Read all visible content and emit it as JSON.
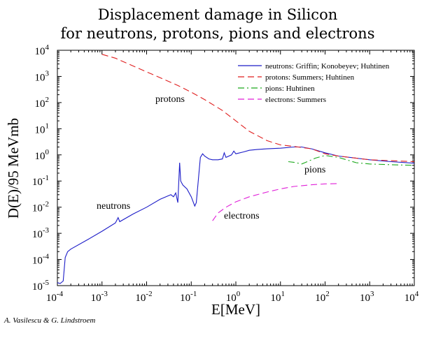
{
  "chart_data": {
    "type": "line",
    "title": [
      "Displacement damage in Silicon",
      "for neutrons, protons, pions and electrons"
    ],
    "xlabel": "E[MeV]",
    "ylabel": "D(E)/95 MeVmb",
    "xscale": "log",
    "yscale": "log",
    "xlim": [
      0.0001,
      10000
    ],
    "ylim": [
      1e-05,
      10000
    ],
    "x_ticks": [
      {
        "base": "10",
        "exp": "-4"
      },
      {
        "base": "10",
        "exp": "-3"
      },
      {
        "base": "10",
        "exp": "-2"
      },
      {
        "base": "10",
        "exp": "-1"
      },
      {
        "base": "10",
        "exp": "0"
      },
      {
        "base": "10",
        "exp": "1"
      },
      {
        "base": "10",
        "exp": "2"
      },
      {
        "base": "10",
        "exp": "3"
      },
      {
        "base": "10",
        "exp": "4"
      }
    ],
    "y_ticks": [
      {
        "base": "10",
        "exp": "-5"
      },
      {
        "base": "10",
        "exp": "-4"
      },
      {
        "base": "10",
        "exp": "-3"
      },
      {
        "base": "10",
        "exp": "-2"
      },
      {
        "base": "10",
        "exp": "-1"
      },
      {
        "base": "10",
        "exp": "0"
      },
      {
        "base": "10",
        "exp": "1"
      },
      {
        "base": "10",
        "exp": "2"
      },
      {
        "base": "10",
        "exp": "3"
      },
      {
        "base": "10",
        "exp": "4"
      }
    ],
    "legend_position": "top-right",
    "series": [
      {
        "name": "neutrons: Griffin; Konobeyev; Huhtinen",
        "label": "neutrons",
        "color": "#1c1cc8",
        "dash": "solid",
        "points": [
          [
            0.0001,
            1.3e-05
          ],
          [
            0.000115,
            1.2e-05
          ],
          [
            0.000135,
            1.5e-05
          ],
          [
            0.00015,
            0.00012
          ],
          [
            0.00017,
            0.0002
          ],
          [
            0.0002,
            0.00025
          ],
          [
            0.0005,
            0.0006
          ],
          [
            0.001,
            0.0012
          ],
          [
            0.002,
            0.0025
          ],
          [
            0.0023,
            0.004
          ],
          [
            0.0025,
            0.0028
          ],
          [
            0.005,
            0.0055
          ],
          [
            0.01,
            0.01
          ],
          [
            0.02,
            0.02
          ],
          [
            0.035,
            0.03
          ],
          [
            0.04,
            0.025
          ],
          [
            0.045,
            0.035
          ],
          [
            0.05,
            0.015
          ],
          [
            0.055,
            0.5
          ],
          [
            0.058,
            0.1
          ],
          [
            0.065,
            0.07
          ],
          [
            0.08,
            0.05
          ],
          [
            0.1,
            0.025
          ],
          [
            0.12,
            0.011
          ],
          [
            0.13,
            0.015
          ],
          [
            0.16,
            0.8
          ],
          [
            0.18,
            1.1
          ],
          [
            0.2,
            0.9
          ],
          [
            0.25,
            0.7
          ],
          [
            0.3,
            0.65
          ],
          [
            0.4,
            0.65
          ],
          [
            0.5,
            0.7
          ],
          [
            0.55,
            1.2
          ],
          [
            0.6,
            0.8
          ],
          [
            0.8,
            1.0
          ],
          [
            0.9,
            1.4
          ],
          [
            1.0,
            1.1
          ],
          [
            1.5,
            1.3
          ],
          [
            2.0,
            1.5
          ],
          [
            3.0,
            1.6
          ],
          [
            5.0,
            1.7
          ],
          [
            10,
            1.8
          ],
          [
            20,
            2.0
          ],
          [
            30,
            2.0
          ],
          [
            50,
            1.7
          ],
          [
            100,
            1.2
          ],
          [
            200,
            0.9
          ],
          [
            500,
            0.75
          ],
          [
            1000,
            0.65
          ],
          [
            3000,
            0.55
          ],
          [
            10000,
            0.48
          ]
        ]
      },
      {
        "name": "protons: Summers; Huhtinen",
        "label": "protons",
        "color": "#e01f1f",
        "dash": "dashed",
        "points": [
          [
            0.001,
            7000
          ],
          [
            0.002,
            5000
          ],
          [
            0.005,
            2500
          ],
          [
            0.01,
            1500
          ],
          [
            0.02,
            900
          ],
          [
            0.05,
            450
          ],
          [
            0.1,
            250
          ],
          [
            0.2,
            130
          ],
          [
            0.5,
            50
          ],
          [
            1,
            20
          ],
          [
            2,
            8
          ],
          [
            5,
            3.5
          ],
          [
            10,
            2.4
          ],
          [
            20,
            2.1
          ],
          [
            50,
            1.7
          ],
          [
            100,
            1.1
          ],
          [
            200,
            0.9
          ],
          [
            500,
            0.75
          ],
          [
            1000,
            0.65
          ],
          [
            3000,
            0.6
          ],
          [
            10000,
            0.55
          ]
        ]
      },
      {
        "name": "pions: Huhtinen",
        "label": "pions",
        "color": "#1aa81a",
        "dash": "dash-dot",
        "points": [
          [
            15,
            0.55
          ],
          [
            20,
            0.52
          ],
          [
            30,
            0.45
          ],
          [
            40,
            0.55
          ],
          [
            60,
            0.75
          ],
          [
            100,
            0.95
          ],
          [
            200,
            0.8
          ],
          [
            500,
            0.5
          ],
          [
            1000,
            0.45
          ],
          [
            3000,
            0.42
          ],
          [
            10000,
            0.4
          ]
        ]
      },
      {
        "name": "electrons: Summers",
        "label": "electrons",
        "color": "#e01fd8",
        "dash": "dashed",
        "points": [
          [
            0.3,
            0.003
          ],
          [
            0.4,
            0.006
          ],
          [
            0.6,
            0.01
          ],
          [
            1,
            0.016
          ],
          [
            2,
            0.025
          ],
          [
            5,
            0.038
          ],
          [
            10,
            0.05
          ],
          [
            20,
            0.062
          ],
          [
            50,
            0.072
          ],
          [
            100,
            0.078
          ],
          [
            200,
            0.08
          ]
        ]
      }
    ]
  },
  "credit": "A. Vasilescu & G. Lindstroem"
}
